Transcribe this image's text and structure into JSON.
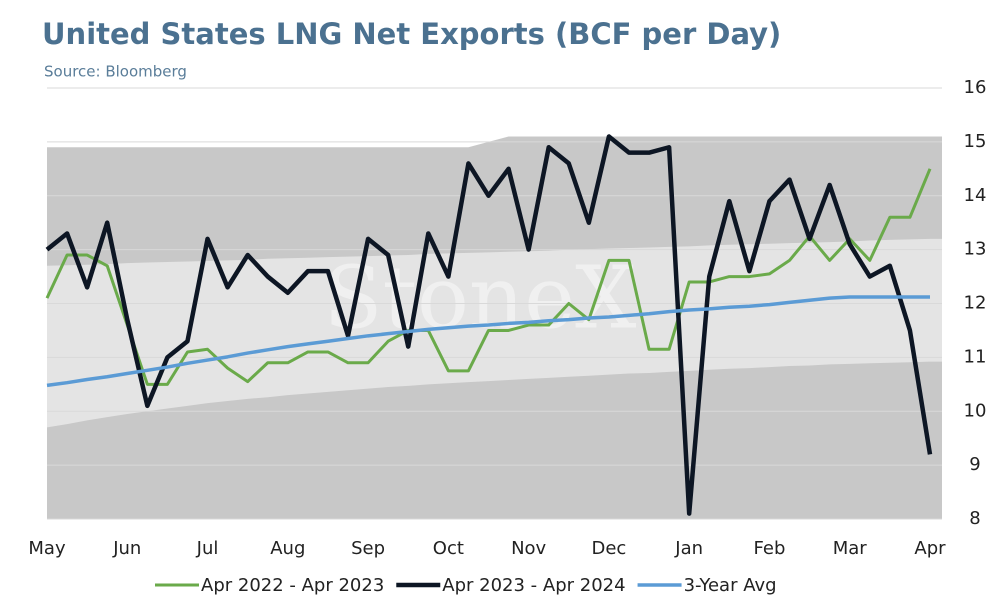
{
  "chart_data": {
    "type": "line",
    "title": "United States LNG Net Exports (BCF per Day)",
    "subtitle": "Source: Bloomberg",
    "watermark": "StoneX",
    "categories": [
      "May",
      null,
      null,
      null,
      "Jun",
      null,
      null,
      null,
      "Jul",
      null,
      null,
      null,
      "Aug",
      null,
      null,
      null,
      "Sep",
      null,
      null,
      null,
      "Oct",
      null,
      null,
      null,
      "Nov",
      null,
      null,
      null,
      "Dec",
      null,
      null,
      null,
      "Jan",
      null,
      null,
      null,
      "Feb",
      null,
      null,
      null,
      "Mar",
      null,
      null,
      null,
      "Apr"
    ],
    "series": [
      {
        "name": "Apr 2022 - Apr 2023",
        "color": "#6aaa4a",
        "width": 3,
        "values": [
          12.1,
          12.9,
          12.9,
          12.7,
          11.6,
          10.5,
          10.5,
          11.1,
          11.15,
          10.8,
          10.55,
          10.9,
          10.9,
          11.1,
          11.1,
          10.9,
          10.9,
          11.3,
          11.5,
          11.5,
          10.75,
          10.75,
          11.5,
          11.5,
          11.6,
          11.6,
          12.0,
          11.7,
          12.8,
          12.8,
          11.15,
          11.15,
          12.4,
          12.4,
          12.5,
          12.5,
          12.55,
          12.8,
          13.25,
          12.8,
          13.2,
          12.8,
          13.6,
          13.6,
          14.5
        ]
      },
      {
        "name": "Apr 2023 - Apr 2024",
        "color": "#0d1624",
        "width": 4.5,
        "values": [
          13.0,
          13.3,
          12.3,
          13.5,
          11.7,
          10.1,
          11.0,
          11.3,
          13.2,
          12.3,
          12.9,
          12.5,
          12.2,
          12.6,
          12.6,
          11.4,
          13.2,
          12.9,
          11.2,
          13.3,
          12.5,
          14.6,
          14.0,
          14.5,
          13.0,
          14.9,
          14.6,
          13.5,
          15.1,
          14.8,
          14.8,
          14.9,
          8.1,
          12.5,
          13.9,
          12.6,
          13.9,
          14.3,
          13.2,
          14.2,
          13.1,
          12.5,
          12.7,
          11.5,
          9.2
        ]
      },
      {
        "name": "3-Year Avg",
        "color": "#5b9bd5",
        "width": 3.5,
        "values": [
          10.48,
          10.53,
          10.59,
          10.64,
          10.7,
          10.76,
          10.82,
          10.89,
          10.95,
          11.01,
          11.08,
          11.14,
          11.2,
          11.25,
          11.3,
          11.35,
          11.4,
          11.44,
          11.48,
          11.52,
          11.55,
          11.58,
          11.6,
          11.63,
          11.65,
          11.68,
          11.7,
          11.73,
          11.75,
          11.78,
          11.81,
          11.85,
          11.88,
          11.9,
          11.93,
          11.95,
          11.98,
          12.02,
          12.06,
          12.1,
          12.12,
          12.12,
          12.12,
          12.12,
          12.12
        ]
      }
    ],
    "bands": [
      {
        "color": "#c8c8c8",
        "values": [
          14.9,
          14.9,
          14.9,
          14.9,
          14.9,
          14.9,
          14.9,
          14.9,
          14.9,
          14.9,
          14.9,
          14.9,
          14.9,
          14.9,
          14.9,
          14.9,
          14.9,
          14.9,
          14.9,
          14.9,
          14.9,
          14.9,
          15.0,
          15.1,
          15.1,
          15.1,
          15.1,
          15.1,
          15.1,
          15.1,
          15.1,
          15.1,
          15.1,
          15.1,
          15.1,
          15.1,
          15.1,
          15.1,
          15.1,
          15.1,
          15.1,
          15.1,
          15.1,
          15.1,
          15.1
        ]
      },
      {
        "color": "#e4e4e4",
        "values": [
          12.7,
          12.71,
          12.72,
          12.73,
          12.75,
          12.76,
          12.77,
          12.78,
          12.79,
          12.8,
          12.81,
          12.83,
          12.84,
          12.85,
          12.86,
          12.87,
          12.88,
          12.89,
          12.9,
          12.92,
          12.93,
          12.94,
          12.95,
          12.96,
          12.97,
          12.98,
          13.0,
          13.01,
          13.02,
          13.03,
          13.04,
          13.05,
          13.06,
          13.08,
          13.09,
          13.1,
          13.11,
          13.12,
          13.13,
          13.14,
          13.15,
          13.17,
          13.18,
          13.19,
          13.2
        ]
      },
      {
        "color": "#c8c8c8",
        "values": [
          9.7,
          9.76,
          9.83,
          9.89,
          9.95,
          10.0,
          10.05,
          10.1,
          10.15,
          10.19,
          10.23,
          10.26,
          10.3,
          10.33,
          10.36,
          10.39,
          10.42,
          10.45,
          10.47,
          10.5,
          10.52,
          10.54,
          10.56,
          10.58,
          10.6,
          10.62,
          10.64,
          10.66,
          10.68,
          10.7,
          10.71,
          10.73,
          10.75,
          10.77,
          10.79,
          10.8,
          10.82,
          10.84,
          10.85,
          10.87,
          10.88,
          10.89,
          10.9,
          10.91,
          10.92
        ]
      }
    ],
    "ylim": [
      8,
      16
    ],
    "yticks": [
      8,
      9,
      10,
      11,
      12,
      13,
      14,
      15,
      16
    ],
    "grid": true,
    "legend": "bottom"
  }
}
